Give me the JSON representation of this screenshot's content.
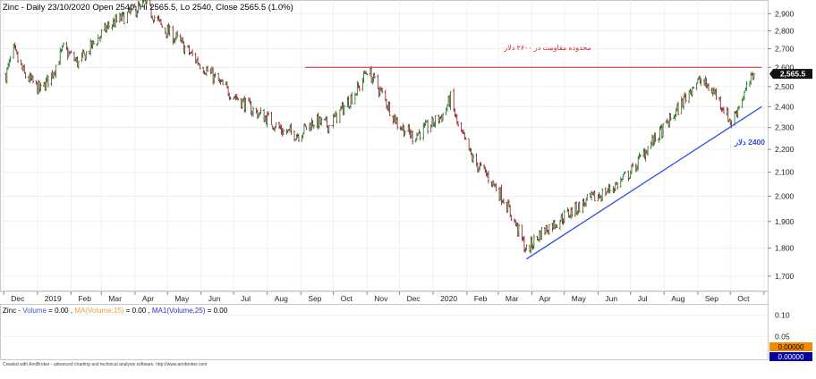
{
  "header": {
    "title": "Zinc - Daily 23/10/2020 Open 2540, Hi 2565.5, Lo 2540, Close 2565.5 (1.0%)"
  },
  "colors": {
    "up": "#157015",
    "down": "#8a1622",
    "resistance_line": "#e23a3a",
    "trend_line": "#2b4de6",
    "price_tag": "#111111",
    "volume_tag": "#000099",
    "ma_orange": "#e8a33c",
    "ma_blue": "#3030d0"
  },
  "chart_data": {
    "type": "candlestick",
    "title": "Zinc - Daily 23/10/2020 Open 2540, Hi 2565.5, Lo 2540, Close 2565.5 (1.0%)",
    "ylim": [
      1660,
      2960
    ],
    "y_scale": "log",
    "yticks": [
      1700,
      1800,
      1900,
      2000,
      2100,
      2200,
      2300,
      2400,
      2500,
      2600,
      2700,
      2800,
      2900
    ],
    "ytick_labels": [
      "1,700",
      "1,800",
      "1,900",
      "2,000",
      "2,100",
      "2,200",
      "2,300",
      "2,400",
      "2,500",
      "2,600",
      "2,700",
      "2,800",
      "2,900"
    ],
    "x_months": [
      "Dec",
      "2019",
      "Feb",
      "Mar",
      "Apr",
      "May",
      "Jun",
      "Jul",
      "Aug",
      "Sep",
      "Oct",
      "Nov",
      "Dec",
      "2020",
      "Feb",
      "Mar",
      "Apr",
      "May",
      "Jun",
      "Jul",
      "Aug",
      "Sep",
      "Oct"
    ],
    "last_price_label": "2,565.5",
    "last_price": 2565.5,
    "price_path": [
      {
        "date": "2018-12-03",
        "close": 2560
      },
      {
        "date": "2018-12-10",
        "close": 2690
      },
      {
        "date": "2018-12-20",
        "close": 2560
      },
      {
        "date": "2019-01-04",
        "close": 2480
      },
      {
        "date": "2019-01-14",
        "close": 2560
      },
      {
        "date": "2019-01-25",
        "close": 2700
      },
      {
        "date": "2019-02-08",
        "close": 2620
      },
      {
        "date": "2019-02-22",
        "close": 2730
      },
      {
        "date": "2019-03-08",
        "close": 2830
      },
      {
        "date": "2019-03-22",
        "close": 2880
      },
      {
        "date": "2019-04-10",
        "close": 2960
      },
      {
        "date": "2019-04-26",
        "close": 2820
      },
      {
        "date": "2019-05-10",
        "close": 2750
      },
      {
        "date": "2019-05-24",
        "close": 2660
      },
      {
        "date": "2019-06-07",
        "close": 2580
      },
      {
        "date": "2019-06-21",
        "close": 2500
      },
      {
        "date": "2019-07-05",
        "close": 2440
      },
      {
        "date": "2019-07-19",
        "close": 2380
      },
      {
        "date": "2019-08-02",
        "close": 2340
      },
      {
        "date": "2019-08-16",
        "close": 2280
      },
      {
        "date": "2019-08-30",
        "close": 2270
      },
      {
        "date": "2019-09-13",
        "close": 2330
      },
      {
        "date": "2019-09-27",
        "close": 2310
      },
      {
        "date": "2019-10-11",
        "close": 2400
      },
      {
        "date": "2019-10-25",
        "close": 2500
      },
      {
        "date": "2019-11-01",
        "close": 2590
      },
      {
        "date": "2019-11-15",
        "close": 2460
      },
      {
        "date": "2019-11-29",
        "close": 2320
      },
      {
        "date": "2019-12-13",
        "close": 2260
      },
      {
        "date": "2019-12-27",
        "close": 2300
      },
      {
        "date": "2020-01-10",
        "close": 2360
      },
      {
        "date": "2020-01-17",
        "close": 2440
      },
      {
        "date": "2020-01-24",
        "close": 2300
      },
      {
        "date": "2020-02-07",
        "close": 2150
      },
      {
        "date": "2020-02-21",
        "close": 2080
      },
      {
        "date": "2020-03-06",
        "close": 1990
      },
      {
        "date": "2020-03-20",
        "close": 1860
      },
      {
        "date": "2020-03-27",
        "close": 1790
      },
      {
        "date": "2020-04-10",
        "close": 1860
      },
      {
        "date": "2020-04-24",
        "close": 1900
      },
      {
        "date": "2020-05-08",
        "close": 1940
      },
      {
        "date": "2020-05-22",
        "close": 1980
      },
      {
        "date": "2020-06-05",
        "close": 2010
      },
      {
        "date": "2020-06-19",
        "close": 2050
      },
      {
        "date": "2020-07-03",
        "close": 2110
      },
      {
        "date": "2020-07-17",
        "close": 2210
      },
      {
        "date": "2020-07-31",
        "close": 2290
      },
      {
        "date": "2020-08-14",
        "close": 2390
      },
      {
        "date": "2020-08-28",
        "close": 2510
      },
      {
        "date": "2020-09-04",
        "close": 2530
      },
      {
        "date": "2020-09-18",
        "close": 2460
      },
      {
        "date": "2020-10-02",
        "close": 2320
      },
      {
        "date": "2020-10-09",
        "close": 2410
      },
      {
        "date": "2020-10-23",
        "close": 2565.5
      }
    ],
    "annotations": {
      "resistance": {
        "label": "محدوده مقاومت در ۲۶۰۰ دلار",
        "value": 2600,
        "from": "2019-09-05",
        "to": "2020-10-30"
      },
      "support": {
        "label": "2400 دلار",
        "points": [
          {
            "date": "2020-03-27",
            "value": 1760
          },
          {
            "date": "2020-10-30",
            "value": 2400
          }
        ]
      }
    },
    "volume_panel": {
      "label_prefix": "Zinc - ",
      "items": [
        {
          "name": "Volume",
          "value": "0.00",
          "color": "#3a56d4"
        },
        {
          "name": "MA(Volume,15)",
          "value": "0.00",
          "color": "#e8a33c"
        },
        {
          "name": "MA1(Volume,25)",
          "value": "0.00",
          "color": "#3030d0"
        }
      ],
      "yticks": [
        0.1,
        0.05
      ],
      "ytick_labels": [
        "0.10",
        "0.05"
      ],
      "ylim": [
        0,
        0.12
      ],
      "tags": [
        "0.00000",
        "0.00000"
      ]
    }
  },
  "footer": {
    "credit": "Created with AmiBroker - advanced charting and technical analysis software. http://www.amibroker.com"
  }
}
